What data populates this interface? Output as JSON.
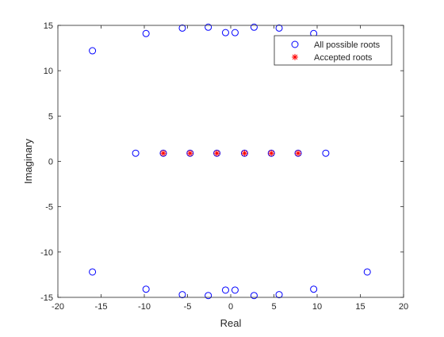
{
  "chart_data": {
    "type": "scatter",
    "xlabel": "Real",
    "ylabel": "Imaginary",
    "xlim": [
      -20,
      20
    ],
    "ylim": [
      -15,
      15
    ],
    "xticks": [
      -20,
      -15,
      -10,
      -5,
      0,
      5,
      10,
      15,
      20
    ],
    "yticks": [
      -15,
      -10,
      -5,
      0,
      5,
      10,
      15
    ],
    "grid": false,
    "legend": "top-right",
    "series": [
      {
        "name": "All possible roots",
        "marker": "circle-open",
        "color": "#0000ff",
        "points": [
          [
            -16.0,
            12.2
          ],
          [
            -9.8,
            14.1
          ],
          [
            -5.6,
            14.7
          ],
          [
            -2.6,
            14.8
          ],
          [
            -0.6,
            14.2
          ],
          [
            0.5,
            14.2
          ],
          [
            2.7,
            14.8
          ],
          [
            5.6,
            14.7
          ],
          [
            9.6,
            14.1
          ],
          [
            -11.0,
            0.9
          ],
          [
            -7.8,
            0.9
          ],
          [
            -4.7,
            0.9
          ],
          [
            -1.6,
            0.9
          ],
          [
            1.6,
            0.9
          ],
          [
            4.7,
            0.9
          ],
          [
            7.8,
            0.9
          ],
          [
            11.0,
            0.9
          ],
          [
            -16.0,
            -12.2
          ],
          [
            -9.8,
            -14.1
          ],
          [
            -5.6,
            -14.7
          ],
          [
            -2.6,
            -14.8
          ],
          [
            -0.6,
            -14.2
          ],
          [
            0.5,
            -14.2
          ],
          [
            2.7,
            -14.8
          ],
          [
            5.6,
            -14.7
          ],
          [
            9.6,
            -14.1
          ],
          [
            15.8,
            -12.2
          ]
        ]
      },
      {
        "name": "Accepted roots",
        "marker": "asterisk",
        "color": "#ff0000",
        "points": [
          [
            -7.8,
            0.9
          ],
          [
            -4.7,
            0.9
          ],
          [
            -1.6,
            0.9
          ],
          [
            1.6,
            0.9
          ],
          [
            4.7,
            0.9
          ],
          [
            7.8,
            0.9
          ]
        ]
      }
    ]
  }
}
